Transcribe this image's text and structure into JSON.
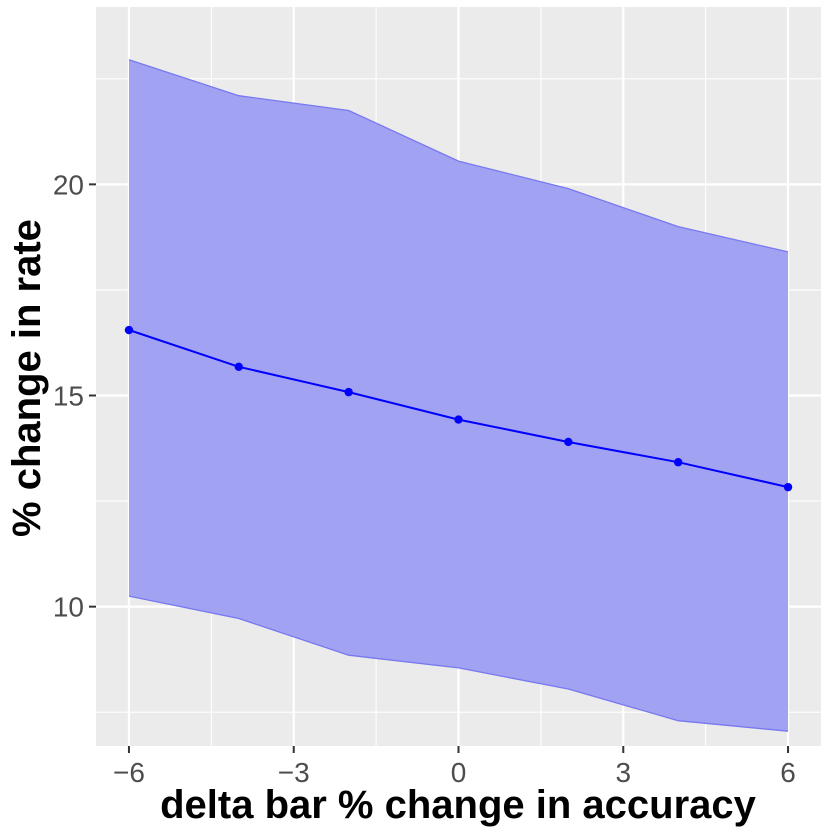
{
  "chart_data": {
    "type": "line",
    "xlabel": "delta bar % change in accuracy",
    "ylabel": "% change in rate",
    "xlim": [
      -6.6,
      6.6
    ],
    "ylim": [
      6.7,
      24.2
    ],
    "x_ticks": [
      -6,
      -3,
      0,
      3,
      6
    ],
    "x_tick_labels": [
      "−6",
      "−3",
      "0",
      "3",
      "6"
    ],
    "y_ticks": [
      10,
      15,
      20
    ],
    "y_tick_labels": [
      "10",
      "15",
      "20"
    ],
    "grid": true,
    "series": [
      {
        "x": [
          -6,
          -4,
          -2,
          0,
          2,
          4,
          6
        ],
        "y": [
          16.55,
          15.68,
          15.08,
          14.43,
          13.9,
          13.42,
          12.83
        ],
        "lower": [
          10.25,
          9.72,
          8.85,
          8.55,
          8.05,
          7.3,
          7.05
        ],
        "upper": [
          22.95,
          22.1,
          21.75,
          20.55,
          19.9,
          19.0,
          18.4
        ],
        "color": "#0000ff",
        "band_color": "#a2a2f2",
        "band_edge_color": "#7878f0"
      }
    ],
    "panel_background": "#ebebeb",
    "grid_color": "#ffffff"
  }
}
